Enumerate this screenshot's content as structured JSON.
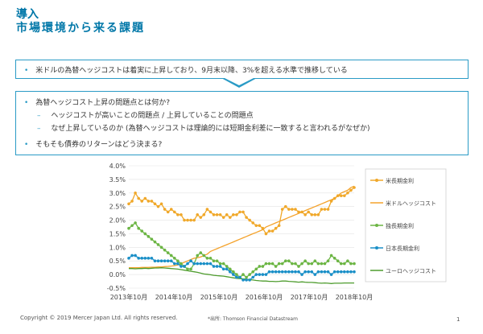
{
  "header": {
    "kicker": "導入",
    "title": "市場環境から来る課題"
  },
  "summary": {
    "bullet": "•",
    "text": "米ドルの為替ヘッジコストは着実に上昇しており、9月末以降、3%を超える水準で推移している"
  },
  "questions": {
    "bullet": "•",
    "dash": "–",
    "q1": "為替ヘッジコスト上昇の問題点とは何か?",
    "q1_sub1": "ヘッジコストが高いことの問題点 / 上昇していることの問題点",
    "q1_sub2": "なぜ上昇しているのか (為替ヘッジコストは理論的には短期金利差に一致すると言われるがなぜか)",
    "q2": "そもそも債券のリターンはどう決まる?"
  },
  "colors": {
    "accent": "#0077a8",
    "box_border": "#2a9bc6",
    "us_long": "#f0a82a",
    "usd_hedge": "#f4a22b",
    "de_long": "#6cb544",
    "jp_long": "#1a8fc7",
    "eur_hedge": "#4e9c2e"
  },
  "chart_data": {
    "type": "line",
    "ylim": [
      -0.005,
      0.04
    ],
    "y_ticks": [
      "4.0%",
      "3.5%",
      "3.0%",
      "2.5%",
      "2.0%",
      "1.5%",
      "1.0%",
      "0.5%",
      "0.0%",
      "-0.5%"
    ],
    "x_ticks": [
      "2013年10月",
      "2014年10月",
      "2015年10月",
      "2016年10月",
      "2017年10月",
      "2018年10月"
    ],
    "x_range": [
      "2013-10",
      "2018-10"
    ],
    "series": [
      {
        "name": "米長期金利",
        "color": "#f0a82a",
        "marker": true,
        "values": [
          0.026,
          0.027,
          0.03,
          0.028,
          0.027,
          0.028,
          0.027,
          0.027,
          0.026,
          0.025,
          0.026,
          0.024,
          0.023,
          0.024,
          0.023,
          0.022,
          0.022,
          0.02,
          0.02,
          0.02,
          0.02,
          0.022,
          0.021,
          0.022,
          0.024,
          0.023,
          0.022,
          0.022,
          0.022,
          0.021,
          0.022,
          0.021,
          0.022,
          0.022,
          0.023,
          0.023,
          0.021,
          0.02,
          0.019,
          0.018,
          0.018,
          0.017,
          0.015,
          0.016,
          0.016,
          0.017,
          0.018,
          0.024,
          0.025,
          0.024,
          0.024,
          0.024,
          0.023,
          0.023,
          0.022,
          0.023,
          0.022,
          0.022,
          0.022,
          0.024,
          0.024,
          0.024,
          0.027,
          0.028,
          0.029,
          0.029,
          0.029,
          0.03,
          0.031,
          0.032
        ]
      },
      {
        "name": "米ドルヘッジコスト",
        "color": "#f4a22b",
        "marker": false,
        "values": [
          0.0025,
          0.0025,
          0.0025,
          0.0025,
          0.0026,
          0.0026,
          0.0026,
          0.0027,
          0.0027,
          0.0028,
          0.0028,
          0.0029,
          0.003,
          0.0031,
          0.0033,
          0.0035,
          0.004,
          0.0045,
          0.005,
          0.0055,
          0.006,
          0.0062,
          0.0065,
          0.007,
          0.0075,
          0.0085,
          0.009,
          0.0095,
          0.01,
          0.0105,
          0.011,
          0.0115,
          0.012,
          0.0125,
          0.013,
          0.0135,
          0.014,
          0.0145,
          0.015,
          0.0155,
          0.016,
          0.0165,
          0.0175,
          0.018,
          0.0185,
          0.019,
          0.0195,
          0.02,
          0.0205,
          0.021,
          0.0215,
          0.022,
          0.0225,
          0.023,
          0.0235,
          0.024,
          0.0245,
          0.025,
          0.0255,
          0.026,
          0.0265,
          0.027,
          0.0275,
          0.028,
          0.029,
          0.03,
          0.0305,
          0.031,
          0.032,
          0.0325
        ]
      },
      {
        "name": "独長期金利",
        "color": "#6cb544",
        "marker": true,
        "values": [
          0.017,
          0.018,
          0.019,
          0.017,
          0.016,
          0.015,
          0.014,
          0.013,
          0.012,
          0.011,
          0.01,
          0.009,
          0.008,
          0.007,
          0.006,
          0.005,
          0.004,
          0.003,
          0.002,
          0.002,
          0.004,
          0.007,
          0.008,
          0.007,
          0.006,
          0.006,
          0.005,
          0.005,
          0.004,
          0.004,
          0.003,
          0.002,
          0.001,
          0.0,
          -0.001,
          0.0,
          -0.001,
          0.0,
          0.001,
          0.002,
          0.003,
          0.003,
          0.004,
          0.004,
          0.004,
          0.003,
          0.004,
          0.004,
          0.005,
          0.005,
          0.004,
          0.004,
          0.003,
          0.004,
          0.005,
          0.004,
          0.004,
          0.005,
          0.004,
          0.004,
          0.004,
          0.005,
          0.007,
          0.006,
          0.005,
          0.004,
          0.004,
          0.005,
          0.004,
          0.004
        ]
      },
      {
        "name": "日本長期金利",
        "color": "#1a8fc7",
        "marker": true,
        "values": [
          0.006,
          0.007,
          0.007,
          0.006,
          0.006,
          0.006,
          0.006,
          0.006,
          0.005,
          0.005,
          0.005,
          0.005,
          0.005,
          0.005,
          0.004,
          0.004,
          0.003,
          0.003,
          0.004,
          0.005,
          0.004,
          0.004,
          0.004,
          0.004,
          0.004,
          0.004,
          0.003,
          0.003,
          0.003,
          0.002,
          0.002,
          0.001,
          0.0,
          -0.001,
          -0.001,
          -0.002,
          -0.002,
          -0.002,
          -0.001,
          0.0,
          0.0,
          0.0,
          0.0,
          0.001,
          0.001,
          0.001,
          0.001,
          0.001,
          0.001,
          0.001,
          0.001,
          0.001,
          0.001,
          0.0,
          0.001,
          0.001,
          0.001,
          0.0,
          0.001,
          0.001,
          0.001,
          0.001,
          0.0,
          0.001,
          0.001,
          0.001,
          0.001,
          0.001,
          0.001,
          0.001
        ]
      },
      {
        "name": "ユーロヘッジコスト",
        "color": "#4e9c2e",
        "marker": false,
        "values": [
          0.0022,
          0.0022,
          0.0021,
          0.0022,
          0.0022,
          0.0023,
          0.0022,
          0.0023,
          0.0024,
          0.0024,
          0.0025,
          0.0024,
          0.0023,
          0.0022,
          0.0021,
          0.002,
          0.0018,
          0.0016,
          0.0014,
          0.0012,
          0.001,
          0.0008,
          0.0005,
          0.0002,
          0.0001,
          -0.0001,
          -0.0003,
          -0.0004,
          -0.0005,
          -0.0006,
          -0.0008,
          -0.001,
          -0.0012,
          -0.0014,
          -0.0015,
          -0.0016,
          -0.0017,
          -0.0019,
          -0.002,
          -0.0022,
          -0.0023,
          -0.0024,
          -0.0024,
          -0.0025,
          -0.0025,
          -0.0026,
          -0.0025,
          -0.0024,
          -0.0024,
          -0.0025,
          -0.0026,
          -0.0027,
          -0.0028,
          -0.0027,
          -0.0028,
          -0.0029,
          -0.0029,
          -0.003,
          -0.0031,
          -0.0032,
          -0.0031,
          -0.0032,
          -0.0033,
          -0.0032,
          -0.0032,
          -0.0032,
          -0.0031,
          -0.0031,
          -0.0031,
          -0.0031
        ]
      }
    ]
  },
  "footer": {
    "copyright": "Copyright © 2019 Mercer Japan Ltd. All rights reserved.",
    "source": "*出所: Thomson Financial Datastream",
    "page_number": "1"
  }
}
